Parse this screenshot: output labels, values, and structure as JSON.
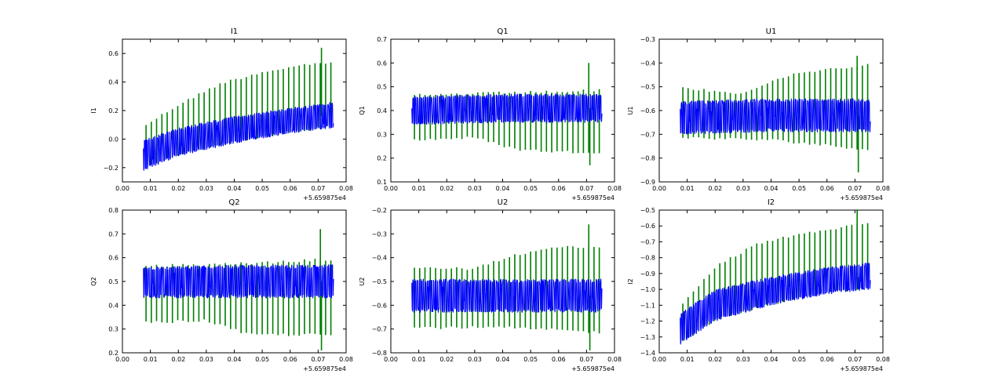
{
  "figure": {
    "background": "#ffffff"
  },
  "series_colors": {
    "primary": "#0000ff",
    "secondary": "#008000"
  },
  "chart_data": [
    {
      "type": "line",
      "title": "I1",
      "ylabel": "I1",
      "xlabel": "",
      "x_offset_label": "+5.659875e4",
      "xlim": [
        0.0,
        0.08
      ],
      "ylim": [
        -0.3,
        0.7
      ],
      "xticks": [
        "0.00",
        "0.01",
        "0.02",
        "0.03",
        "0.04",
        "0.05",
        "0.06",
        "0.07",
        "0.08"
      ],
      "yticks": [
        "−0.2",
        "0.0",
        "0.2",
        "0.4",
        "0.6"
      ],
      "ytick_values": [
        -0.2,
        0.0,
        0.2,
        0.4,
        0.6
      ],
      "x_range": [
        0.0075,
        0.0755
      ],
      "series": [
        {
          "name": "secondary",
          "color": "#008000",
          "upper_x": [
            0.0075,
            0.02,
            0.035,
            0.05,
            0.065,
            0.0755
          ],
          "upper_y": [
            0.1,
            0.25,
            0.4,
            0.48,
            0.53,
            0.55
          ],
          "lower_x": [
            0.0075,
            0.02,
            0.04,
            0.06,
            0.0755
          ],
          "lower_y": [
            -0.22,
            -0.12,
            -0.03,
            0.04,
            0.08
          ],
          "spikes": [
            [
              0.0712,
              0.64
            ]
          ]
        },
        {
          "name": "primary",
          "color": "#0000ff",
          "upper_x": [
            0.0075,
            0.02,
            0.04,
            0.06,
            0.0755
          ],
          "upper_y": [
            0.0,
            0.08,
            0.16,
            0.22,
            0.26
          ],
          "lower_x": [
            0.0075,
            0.02,
            0.04,
            0.06,
            0.0755
          ],
          "lower_y": [
            -0.22,
            -0.12,
            -0.03,
            0.04,
            0.08
          ]
        }
      ]
    },
    {
      "type": "line",
      "title": "Q1",
      "ylabel": "Q1",
      "xlabel": "",
      "x_offset_label": "+5.659875e4",
      "xlim": [
        0.0,
        0.08
      ],
      "ylim": [
        0.1,
        0.7
      ],
      "xticks": [
        "0.00",
        "0.01",
        "0.02",
        "0.03",
        "0.04",
        "0.05",
        "0.06",
        "0.07",
        "0.08"
      ],
      "yticks": [
        "0.1",
        "0.2",
        "0.3",
        "0.4",
        "0.5",
        "0.6",
        "0.7"
      ],
      "ytick_values": [
        0.1,
        0.2,
        0.3,
        0.4,
        0.5,
        0.6,
        0.7
      ],
      "x_range": [
        0.0075,
        0.0755
      ],
      "series": [
        {
          "name": "secondary",
          "color": "#008000",
          "upper_x": [
            0.0075,
            0.04,
            0.0755
          ],
          "upper_y": [
            0.47,
            0.48,
            0.49
          ],
          "lower_x": [
            0.0075,
            0.03,
            0.045,
            0.06,
            0.0755
          ],
          "lower_y": [
            0.27,
            0.28,
            0.23,
            0.22,
            0.22
          ],
          "spikes": [
            [
              0.0708,
              0.6
            ],
            [
              0.0712,
              0.17
            ]
          ]
        },
        {
          "name": "primary",
          "color": "#0000ff",
          "upper_x": [
            0.0075,
            0.04,
            0.0755
          ],
          "upper_y": [
            0.46,
            0.47,
            0.47
          ],
          "lower_x": [
            0.0075,
            0.04,
            0.0755
          ],
          "lower_y": [
            0.34,
            0.35,
            0.35
          ]
        }
      ]
    },
    {
      "type": "line",
      "title": "U1",
      "ylabel": "U1",
      "xlabel": "",
      "x_offset_label": "+5.659875e4",
      "xlim": [
        0.0,
        0.08
      ],
      "ylim": [
        -0.9,
        -0.3
      ],
      "xticks": [
        "0.00",
        "0.01",
        "0.02",
        "0.03",
        "0.04",
        "0.05",
        "0.06",
        "0.07",
        "0.08"
      ],
      "yticks": [
        "−0.9",
        "−0.8",
        "−0.7",
        "−0.6",
        "−0.5",
        "−0.4",
        "−0.3"
      ],
      "ytick_values": [
        -0.9,
        -0.8,
        -0.7,
        -0.6,
        -0.5,
        -0.4,
        -0.3
      ],
      "x_range": [
        0.0075,
        0.0755
      ],
      "series": [
        {
          "name": "secondary",
          "color": "#008000",
          "upper_x": [
            0.0075,
            0.03,
            0.045,
            0.06,
            0.0755
          ],
          "upper_y": [
            -0.5,
            -0.52,
            -0.45,
            -0.42,
            -0.4
          ],
          "lower_x": [
            0.0075,
            0.04,
            0.0755
          ],
          "lower_y": [
            -0.72,
            -0.73,
            -0.77
          ],
          "spikes": [
            [
              0.0708,
              -0.37
            ],
            [
              0.0712,
              -0.86
            ]
          ]
        },
        {
          "name": "primary",
          "color": "#0000ff",
          "upper_x": [
            0.0075,
            0.04,
            0.0755
          ],
          "upper_y": [
            -0.56,
            -0.55,
            -0.55
          ],
          "lower_x": [
            0.0075,
            0.04,
            0.0755
          ],
          "lower_y": [
            -0.7,
            -0.69,
            -0.69
          ]
        }
      ]
    },
    {
      "type": "line",
      "title": "Q2",
      "ylabel": "Q2",
      "xlabel": "",
      "x_offset_label": "+5.659875e4",
      "xlim": [
        0.0,
        0.08
      ],
      "ylim": [
        0.2,
        0.8
      ],
      "xticks": [
        "0.00",
        "0.01",
        "0.02",
        "0.03",
        "0.04",
        "0.05",
        "0.06",
        "0.07",
        "0.08"
      ],
      "yticks": [
        "0.2",
        "0.3",
        "0.4",
        "0.5",
        "0.6",
        "0.7",
        "0.8"
      ],
      "ytick_values": [
        0.2,
        0.3,
        0.4,
        0.5,
        0.6,
        0.7,
        0.8
      ],
      "x_range": [
        0.0075,
        0.0755
      ],
      "series": [
        {
          "name": "secondary",
          "color": "#008000",
          "upper_x": [
            0.0075,
            0.04,
            0.06,
            0.0755
          ],
          "upper_y": [
            0.57,
            0.58,
            0.59,
            0.6
          ],
          "lower_x": [
            0.0075,
            0.03,
            0.045,
            0.06,
            0.0755
          ],
          "lower_y": [
            0.32,
            0.33,
            0.27,
            0.27,
            0.27
          ],
          "spikes": [
            [
              0.0708,
              0.72
            ],
            [
              0.0712,
              0.21
            ]
          ]
        },
        {
          "name": "primary",
          "color": "#0000ff",
          "upper_x": [
            0.0075,
            0.04,
            0.0755
          ],
          "upper_y": [
            0.56,
            0.57,
            0.57
          ],
          "lower_x": [
            0.0075,
            0.04,
            0.0755
          ],
          "lower_y": [
            0.43,
            0.43,
            0.43
          ]
        }
      ]
    },
    {
      "type": "line",
      "title": "U2",
      "ylabel": "U2",
      "xlabel": "",
      "x_offset_label": "+5.659875e4",
      "xlim": [
        0.0,
        0.08
      ],
      "ylim": [
        -0.8,
        -0.2
      ],
      "xticks": [
        "0.00",
        "0.01",
        "0.02",
        "0.03",
        "0.04",
        "0.05",
        "0.06",
        "0.07",
        "0.08"
      ],
      "yticks": [
        "−0.8",
        "−0.7",
        "−0.6",
        "−0.5",
        "−0.4",
        "−0.3",
        "−0.2"
      ],
      "ytick_values": [
        -0.8,
        -0.7,
        -0.6,
        -0.5,
        -0.4,
        -0.3,
        -0.2
      ],
      "x_range": [
        0.0075,
        0.0755
      ],
      "series": [
        {
          "name": "secondary",
          "color": "#008000",
          "upper_x": [
            0.0075,
            0.03,
            0.045,
            0.06,
            0.0755
          ],
          "upper_y": [
            -0.44,
            -0.44,
            -0.38,
            -0.35,
            -0.35
          ],
          "lower_x": [
            0.0075,
            0.04,
            0.0755
          ],
          "lower_y": [
            -0.7,
            -0.7,
            -0.72
          ],
          "spikes": [
            [
              0.0708,
              -0.26
            ],
            [
              0.0712,
              -0.79
            ]
          ]
        },
        {
          "name": "primary",
          "color": "#0000ff",
          "upper_x": [
            0.0075,
            0.04,
            0.0755
          ],
          "upper_y": [
            -0.49,
            -0.49,
            -0.49
          ],
          "lower_x": [
            0.0075,
            0.04,
            0.0755
          ],
          "lower_y": [
            -0.63,
            -0.63,
            -0.63
          ]
        }
      ]
    },
    {
      "type": "line",
      "title": "I2",
      "ylabel": "I2",
      "xlabel": "",
      "x_offset_label": "+5.659875e4",
      "xlim": [
        0.0,
        0.08
      ],
      "ylim": [
        -1.4,
        -0.5
      ],
      "xticks": [
        "0.00",
        "0.01",
        "0.02",
        "0.03",
        "0.04",
        "0.05",
        "0.06",
        "0.07",
        "0.08"
      ],
      "yticks": [
        "−1.4",
        "−1.3",
        "−1.2",
        "−1.1",
        "−1.0",
        "−0.9",
        "−0.8",
        "−0.7",
        "−0.6",
        "−0.5"
      ],
      "ytick_values": [
        -1.4,
        -1.3,
        -1.2,
        -1.1,
        -1.0,
        -0.9,
        -0.8,
        -0.7,
        -0.6,
        -0.5
      ],
      "x_range": [
        0.0075,
        0.0755
      ],
      "series": [
        {
          "name": "secondary",
          "color": "#008000",
          "upper_x": [
            0.0075,
            0.02,
            0.035,
            0.05,
            0.065,
            0.0755
          ],
          "upper_y": [
            -1.1,
            -0.85,
            -0.7,
            -0.64,
            -0.6,
            -0.57
          ],
          "lower_x": [
            0.0075,
            0.02,
            0.04,
            0.06,
            0.0755
          ],
          "lower_y": [
            -1.35,
            -1.2,
            -1.1,
            -1.03,
            -1.0
          ],
          "spikes": [
            [
              0.0708,
              -0.5
            ],
            [
              0.0712,
              -1.0
            ]
          ]
        },
        {
          "name": "primary",
          "color": "#0000ff",
          "upper_x": [
            0.0075,
            0.02,
            0.04,
            0.06,
            0.0755
          ],
          "upper_y": [
            -1.15,
            -1.0,
            -0.92,
            -0.86,
            -0.83
          ],
          "lower_x": [
            0.0075,
            0.02,
            0.04,
            0.06,
            0.0755
          ],
          "lower_y": [
            -1.35,
            -1.2,
            -1.1,
            -1.03,
            -1.0
          ]
        }
      ]
    }
  ]
}
